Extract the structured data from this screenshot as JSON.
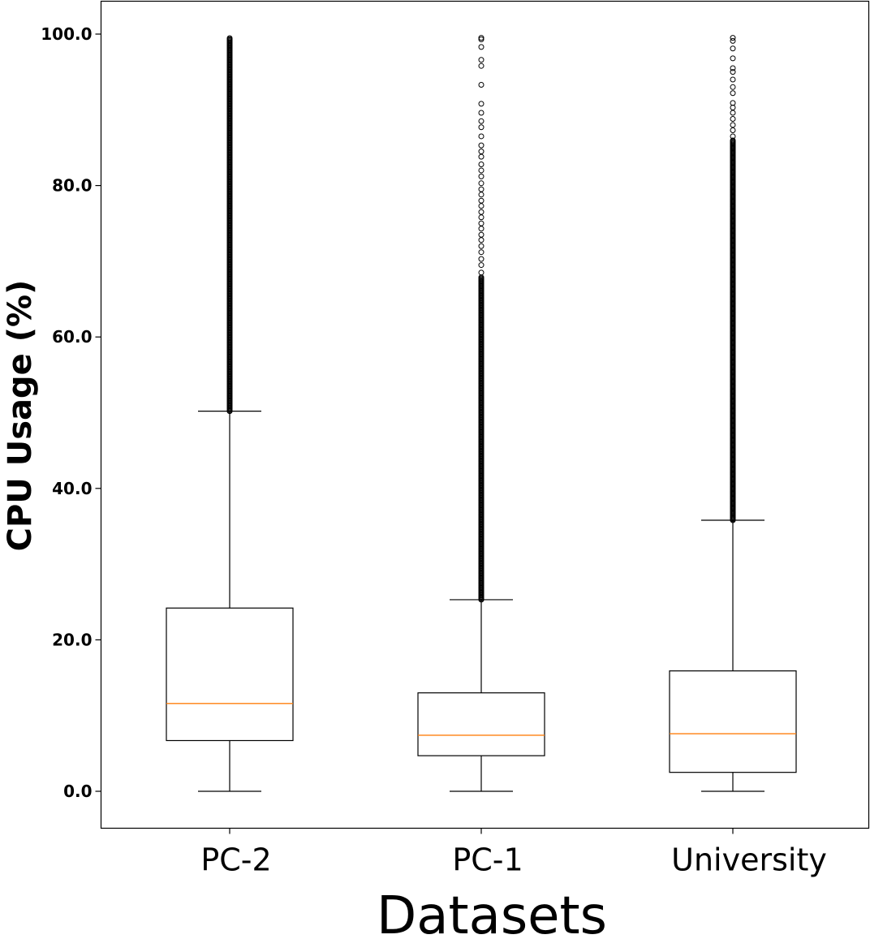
{
  "chart_data": {
    "type": "boxplot",
    "title": "",
    "xlabel": "Datasets",
    "ylabel": "CPU Usage (%)",
    "ylim": [
      -5,
      104.5
    ],
    "yticks": [
      0.0,
      20.0,
      40.0,
      60.0,
      80.0,
      100.0
    ],
    "ytick_labels": [
      "0.0",
      "20.0",
      "40.0",
      "60.0",
      "80.0",
      "100.0"
    ],
    "categories": [
      "PC-2",
      "PC-1",
      "University"
    ],
    "grid": false,
    "legend": "none",
    "box_color": "#000000",
    "median_color": "#ff7f0e",
    "series": [
      {
        "category": "PC-2",
        "whisker_low": 0.0,
        "q1": 6.7,
        "median": 11.6,
        "q3": 24.2,
        "whisker_high": 50.2,
        "outlier_band": [
          50.2,
          99.5
        ],
        "sparse_outliers": []
      },
      {
        "category": "PC-1",
        "whisker_low": 0.0,
        "q1": 4.7,
        "median": 7.4,
        "q3": 13.0,
        "whisker_high": 25.3,
        "outlier_band": [
          25.3,
          68.0
        ],
        "sparse_outliers": [
          68.5,
          69.5,
          70.3,
          71.2,
          72.0,
          72.8,
          73.5,
          74.3,
          75.0,
          75.8,
          76.5,
          77.3,
          78.0,
          78.8,
          79.5,
          80.3,
          81.2,
          82.0,
          82.8,
          83.8,
          84.5,
          85.3,
          86.5,
          87.7,
          88.5,
          89.6,
          90.8,
          93.3,
          95.8,
          96.6,
          98.3,
          99.3,
          99.5
        ]
      },
      {
        "category": "University",
        "whisker_low": 0.0,
        "q1": 2.5,
        "median": 7.6,
        "q3": 15.9,
        "whisker_high": 35.8,
        "outlier_band": [
          35.8,
          86.0
        ],
        "sparse_outliers": [
          86.5,
          87.3,
          88.0,
          88.8,
          89.6,
          90.3,
          90.9,
          92.2,
          93.0,
          94.0,
          95.0,
          95.5,
          96.8,
          98.1,
          99.1,
          99.5
        ]
      }
    ]
  }
}
